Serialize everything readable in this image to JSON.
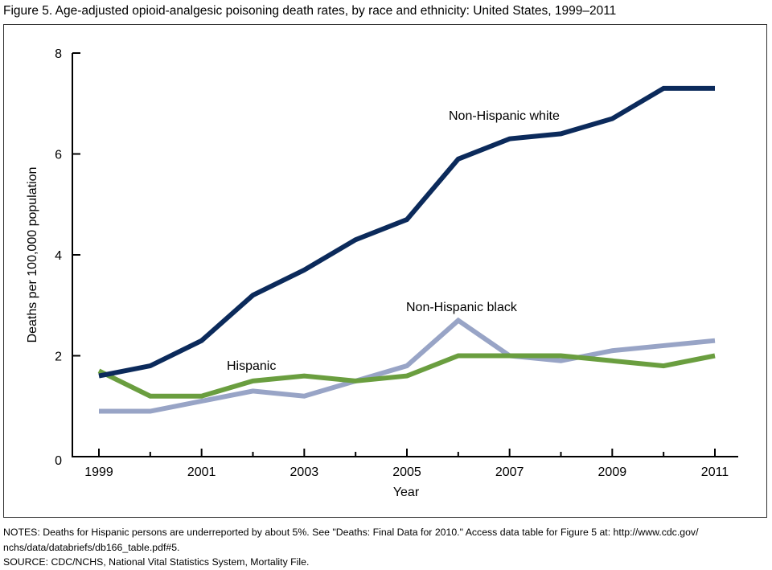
{
  "chart_data": {
    "type": "line",
    "title": "Figure 5. Age-adjusted opioid-analgesic poisoning death rates, by race and ethnicity: United States, 1999–2011",
    "xlabel": "Year",
    "ylabel": "Deaths per 100,000 population",
    "x": [
      1999,
      2000,
      2001,
      2002,
      2003,
      2004,
      2005,
      2006,
      2007,
      2008,
      2009,
      2010,
      2011
    ],
    "xticklabels": [
      "1999",
      "2001",
      "2003",
      "2005",
      "2007",
      "2009",
      "2011"
    ],
    "yticklabels": [
      "0",
      "2",
      "4",
      "6",
      "8"
    ],
    "ylim": [
      0,
      8
    ],
    "xlim": [
      1999,
      2011
    ],
    "grid": false,
    "series": [
      {
        "name": "Non-Hispanic white",
        "color": "#0b2a5b",
        "values": [
          1.6,
          1.8,
          2.3,
          3.2,
          3.7,
          4.3,
          4.7,
          5.9,
          6.3,
          6.4,
          6.7,
          7.3,
          7.3
        ]
      },
      {
        "name": "Non-Hispanic black",
        "color": "#98a4c6",
        "values": [
          0.9,
          0.9,
          1.1,
          1.3,
          1.2,
          1.5,
          1.8,
          2.7,
          2.0,
          1.9,
          2.1,
          2.2,
          2.3
        ]
      },
      {
        "name": "Hispanic",
        "color": "#6a9e3f",
        "values": [
          1.7,
          1.2,
          1.2,
          1.5,
          1.6,
          1.5,
          1.6,
          2.0,
          2.0,
          2.0,
          1.9,
          1.8,
          2.0
        ]
      }
    ]
  },
  "notes": {
    "line1": "NOTES: Deaths for Hispanic persons are underreported by about 5%. See \"Deaths: Final Data for 2010.\" Access data table for Figure 5 at: http://www.cdc.gov/",
    "line2": "nchs/data/databriefs/db166_table.pdf#5.",
    "source": "SOURCE: CDC/NCHS, National Vital Statistics System, Mortality File."
  }
}
